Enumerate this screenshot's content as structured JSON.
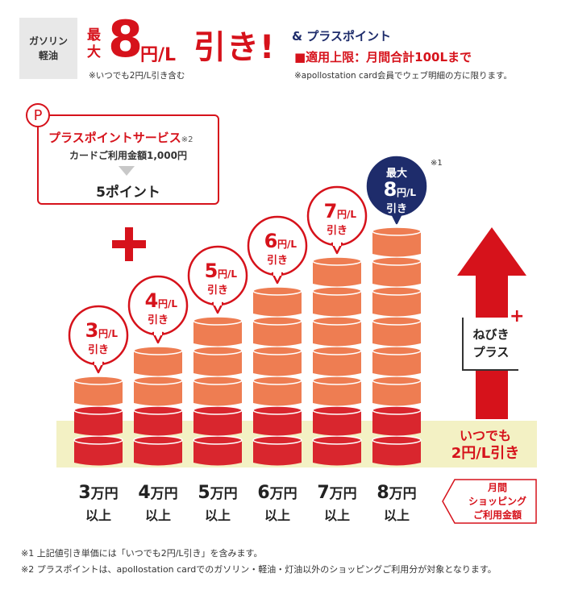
{
  "header": {
    "fuel_label_1": "ガソリン",
    "fuel_label_2": "軽油",
    "max_label": "最大",
    "max_value": "8",
    "max_unit": "円/L",
    "discount_word": "引き!",
    "always_note": "※いつでも2円/L引き含む",
    "plus_point_title": "& プラスポイント",
    "limit_text": "■適用上限：月間合計100Lまで",
    "apollo_note": "※apollostation card会員でウェブ明細の方に限ります。"
  },
  "service_box": {
    "badge": "P",
    "title": "プラスポイントサービス",
    "ref": "※2",
    "condition": "カードご利用金額1,000円",
    "points": "5ポイント"
  },
  "arrow": {
    "nebiki_1": "ねびき",
    "nebiki_2": "プラス",
    "always_1": "いつでも",
    "always_2": "2円/L引き"
  },
  "spend_label": [
    "月間",
    "ショッピング",
    "ご利用金額"
  ],
  "footnotes": {
    "note1": "※1 上記値引き単価には「いつでも2円/L引き」を含みます。",
    "note2": "※2 プラスポイントは、apollostation cardでのガソリン・軽油・灯油以外のショッピングご利用分が対象となります。"
  },
  "colors": {
    "accent_red": "#d6121b",
    "coin_orange": "#ee7d52",
    "coin_red": "#d9262e",
    "navy": "#1e2c6b",
    "band": "#f3f1c4"
  },
  "chart_data": {
    "type": "bar",
    "categories": [
      "3万円以上",
      "4万円以上",
      "5万円以上",
      "6万円以上",
      "7万円以上",
      "8万円以上"
    ],
    "tiers": [
      {
        "amount": "3",
        "unit": "万円",
        "suffix": "以上",
        "discount": "3",
        "bubble_unit": "円/L",
        "bubble_word": "引き"
      },
      {
        "amount": "4",
        "unit": "万円",
        "suffix": "以上",
        "discount": "4",
        "bubble_unit": "円/L",
        "bubble_word": "引き"
      },
      {
        "amount": "5",
        "unit": "万円",
        "suffix": "以上",
        "discount": "5",
        "bubble_unit": "円/L",
        "bubble_word": "引き"
      },
      {
        "amount": "6",
        "unit": "万円",
        "suffix": "以上",
        "discount": "6",
        "bubble_unit": "円/L",
        "bubble_word": "引き"
      },
      {
        "amount": "7",
        "unit": "万円",
        "suffix": "以上",
        "discount": "7",
        "bubble_unit": "円/L",
        "bubble_word": "引き"
      },
      {
        "amount": "8",
        "unit": "万円",
        "suffix": "以上",
        "discount": "8",
        "bubble_unit": "円/L",
        "bubble_word": "引き",
        "prefix": "最大",
        "note": "※1"
      }
    ],
    "values": [
      3,
      4,
      5,
      6,
      7,
      8
    ],
    "base_value": 2,
    "unit": "円/L"
  }
}
